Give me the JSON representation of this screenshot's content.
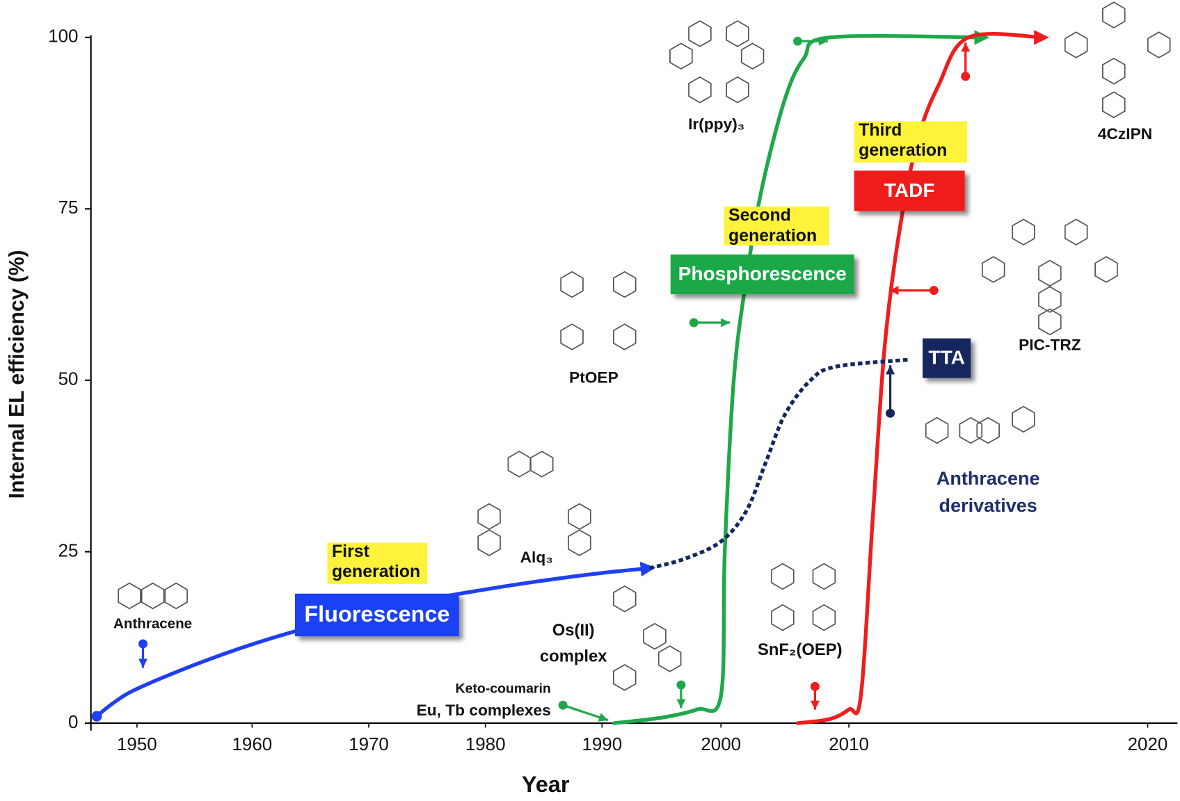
{
  "chart_data": {
    "type": "line",
    "x_label": "Year",
    "y_label": "Internal EL efficiency (%)",
    "xlim": [
      1946,
      2021
    ],
    "ylim": [
      0,
      100
    ],
    "xticks": [
      1950,
      1960,
      1970,
      1980,
      1990,
      2000,
      2010,
      2020
    ],
    "yticks": [
      0,
      25,
      50,
      75,
      100
    ],
    "series": [
      {
        "name": "Fluorescence",
        "generation": [
          "First",
          "generation"
        ],
        "color": "#1f3ff5",
        "x": [
          1946.5,
          1948,
          1950,
          1955,
          1960,
          1965,
          1970,
          1975,
          1980,
          1985,
          1990,
          1994
        ],
        "values": [
          1,
          3,
          5,
          8.5,
          11.5,
          14,
          16,
          18,
          19.5,
          20.8,
          21.9,
          22.6
        ]
      },
      {
        "name": "Phosphorescence",
        "generation": [
          "Second",
          "generation"
        ],
        "color": "#1fa84a",
        "x": [
          1991,
          1995,
          1998,
          2000,
          2000.3,
          2001,
          2002,
          2003.2,
          2005,
          2006.5,
          2008.5,
          2014.5
        ],
        "values": [
          0,
          0.8,
          2,
          4,
          25,
          50,
          65,
          78,
          91,
          97,
          100,
          100
        ]
      },
      {
        "name": "TADF",
        "generation": [
          "Third",
          "generation"
        ],
        "color": "#f01d1d",
        "x": [
          2006,
          2008.5,
          2010,
          2010.4,
          2010.8,
          2011.2,
          2011.7,
          2012.3,
          2013,
          2014,
          2016.5
        ],
        "values": [
          0,
          0.6,
          2,
          4,
          30,
          55,
          72,
          85,
          93,
          100,
          100
        ]
      },
      {
        "name": "TTA",
        "color": "#13265e",
        "dashed": true,
        "x": [
          1994,
          1997,
          2000,
          2002,
          2003.5,
          2005,
          2007,
          2009,
          2012
        ],
        "values": [
          22.6,
          24,
          26.5,
          31,
          38,
          45,
          50,
          52,
          53
        ]
      }
    ],
    "annotations": [
      [
        "Anthracene"
      ],
      [
        "Alq₃"
      ],
      [
        "PtOEP"
      ],
      [
        "Os(II)",
        "complex"
      ],
      [
        "Keto-coumarin"
      ],
      [
        "Eu, Tb complexes"
      ],
      [
        "SnF₂(OEP)"
      ],
      [
        "Ir(ppy)₃"
      ],
      [
        "PIC-TRZ"
      ],
      [
        "4CzIPN"
      ],
      [
        "Anthracene",
        "derivatives"
      ]
    ]
  }
}
